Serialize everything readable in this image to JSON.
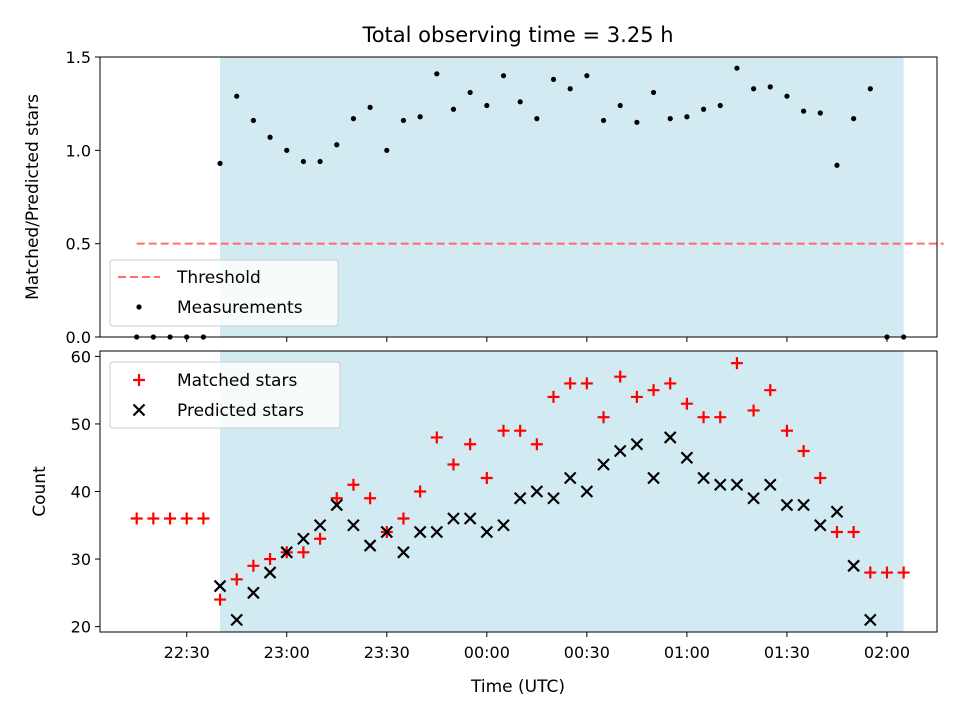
{
  "figure": {
    "title": "Total observing time = 3.25 h",
    "xlabel": "Time (UTC)"
  },
  "colors": {
    "shade": "#add8e6",
    "threshold": "#ff6b6b",
    "measurement": "#000000",
    "matched": "#ff0000",
    "predicted": "#000000"
  },
  "chart_data": [
    {
      "type": "scatter",
      "ylabel": "Matched/Predicted stars",
      "ylim": [
        0,
        1.5
      ],
      "yticks": [
        0.0,
        0.5,
        1.0,
        1.5
      ],
      "ytick_labels": [
        "0.0",
        "0.5",
        "1.0",
        "1.5"
      ],
      "xlim": [
        "22:04",
        "02:15"
      ],
      "xticks": [
        "22:30",
        "23:00",
        "23:30",
        "00:00",
        "00:30",
        "01:00",
        "01:30",
        "02:00"
      ],
      "shaded_interval": [
        "22:40",
        "02:05"
      ],
      "legend": {
        "position": "lower-left",
        "entries": [
          "Threshold",
          "Measurements"
        ]
      },
      "series": [
        {
          "name": "Threshold",
          "kind": "dashed-line",
          "x": [
            "22:15",
            "02:17"
          ],
          "y": [
            0.5,
            0.5
          ]
        },
        {
          "name": "Measurements",
          "kind": "dots",
          "x": [
            "22:15",
            "22:20",
            "22:25",
            "22:30",
            "22:35",
            "22:40",
            "22:45",
            "22:50",
            "22:55",
            "23:00",
            "23:05",
            "23:10",
            "23:15",
            "23:20",
            "23:25",
            "23:30",
            "23:35",
            "23:40",
            "23:45",
            "23:50",
            "23:55",
            "00:00",
            "00:05",
            "00:10",
            "00:15",
            "00:20",
            "00:25",
            "00:30",
            "00:35",
            "00:40",
            "00:45",
            "00:50",
            "00:55",
            "01:00",
            "01:05",
            "01:10",
            "01:15",
            "01:20",
            "01:25",
            "01:30",
            "01:35",
            "01:40",
            "01:45",
            "01:50",
            "01:55",
            "02:00",
            "02:05"
          ],
          "y": [
            0,
            0,
            0,
            0,
            0,
            0.93,
            1.29,
            1.16,
            1.07,
            1.0,
            0.94,
            0.94,
            1.03,
            1.17,
            1.23,
            1.0,
            1.16,
            1.18,
            1.41,
            1.22,
            1.31,
            1.24,
            1.4,
            1.26,
            1.17,
            1.38,
            1.33,
            1.4,
            1.16,
            1.24,
            1.15,
            1.31,
            1.17,
            1.18,
            1.22,
            1.24,
            1.44,
            1.33,
            1.34,
            1.29,
            1.21,
            1.2,
            0.92,
            1.17,
            1.33,
            0,
            0
          ]
        }
      ]
    },
    {
      "type": "scatter",
      "ylabel": "Count",
      "ylim": [
        19.2,
        60.8
      ],
      "yticks": [
        20,
        30,
        40,
        50,
        60
      ],
      "ytick_labels": [
        "20",
        "30",
        "40",
        "50",
        "60"
      ],
      "xlim": [
        "22:04",
        "02:15"
      ],
      "xticks": [
        "22:30",
        "23:00",
        "23:30",
        "00:00",
        "00:30",
        "01:00",
        "01:30",
        "02:00"
      ],
      "xtick_labels": [
        "22:30",
        "23:00",
        "23:30",
        "00:00",
        "00:30",
        "01:00",
        "01:30",
        "02:00"
      ],
      "shaded_interval": [
        "22:40",
        "02:05"
      ],
      "legend": {
        "position": "upper-left",
        "entries": [
          "Matched stars",
          "Predicted stars"
        ]
      },
      "series": [
        {
          "name": "Matched stars",
          "kind": "plus",
          "x": [
            "22:15",
            "22:20",
            "22:25",
            "22:30",
            "22:35",
            "22:40",
            "22:45",
            "22:50",
            "22:55",
            "23:00",
            "23:05",
            "23:10",
            "23:15",
            "23:20",
            "23:25",
            "23:30",
            "23:35",
            "23:40",
            "23:45",
            "23:50",
            "23:55",
            "00:00",
            "00:05",
            "00:10",
            "00:15",
            "00:20",
            "00:25",
            "00:30",
            "00:35",
            "00:40",
            "00:45",
            "00:50",
            "00:55",
            "01:00",
            "01:05",
            "01:10",
            "01:15",
            "01:20",
            "01:25",
            "01:30",
            "01:35",
            "01:40",
            "01:45",
            "01:50",
            "01:55",
            "02:00",
            "02:05"
          ],
          "y": [
            36,
            36,
            36,
            36,
            36,
            24,
            27,
            29,
            30,
            31,
            31,
            33,
            39,
            41,
            39,
            34,
            36,
            40,
            48,
            44,
            47,
            42,
            49,
            49,
            47,
            54,
            56,
            56,
            51,
            57,
            54,
            55,
            56,
            53,
            51,
            51,
            59,
            52,
            55,
            49,
            46,
            42,
            34,
            34,
            28,
            28,
            28
          ]
        },
        {
          "name": "Predicted stars",
          "kind": "x",
          "x": [
            "22:40",
            "22:45",
            "22:50",
            "22:55",
            "23:00",
            "23:05",
            "23:10",
            "23:15",
            "23:20",
            "23:25",
            "23:30",
            "23:35",
            "23:40",
            "23:45",
            "23:50",
            "23:55",
            "00:00",
            "00:05",
            "00:10",
            "00:15",
            "00:20",
            "00:25",
            "00:30",
            "00:35",
            "00:40",
            "00:45",
            "00:50",
            "00:55",
            "01:00",
            "01:05",
            "01:10",
            "01:15",
            "01:20",
            "01:25",
            "01:30",
            "01:35",
            "01:40",
            "01:45",
            "01:50",
            "01:55"
          ],
          "y": [
            26,
            21,
            25,
            28,
            31,
            33,
            35,
            38,
            35,
            32,
            34,
            31,
            34,
            34,
            36,
            36,
            34,
            35,
            39,
            40,
            39,
            42,
            40,
            44,
            46,
            47,
            42,
            48,
            45,
            42,
            41,
            41,
            39,
            41,
            38,
            38,
            35,
            37,
            29,
            21
          ]
        }
      ]
    }
  ]
}
